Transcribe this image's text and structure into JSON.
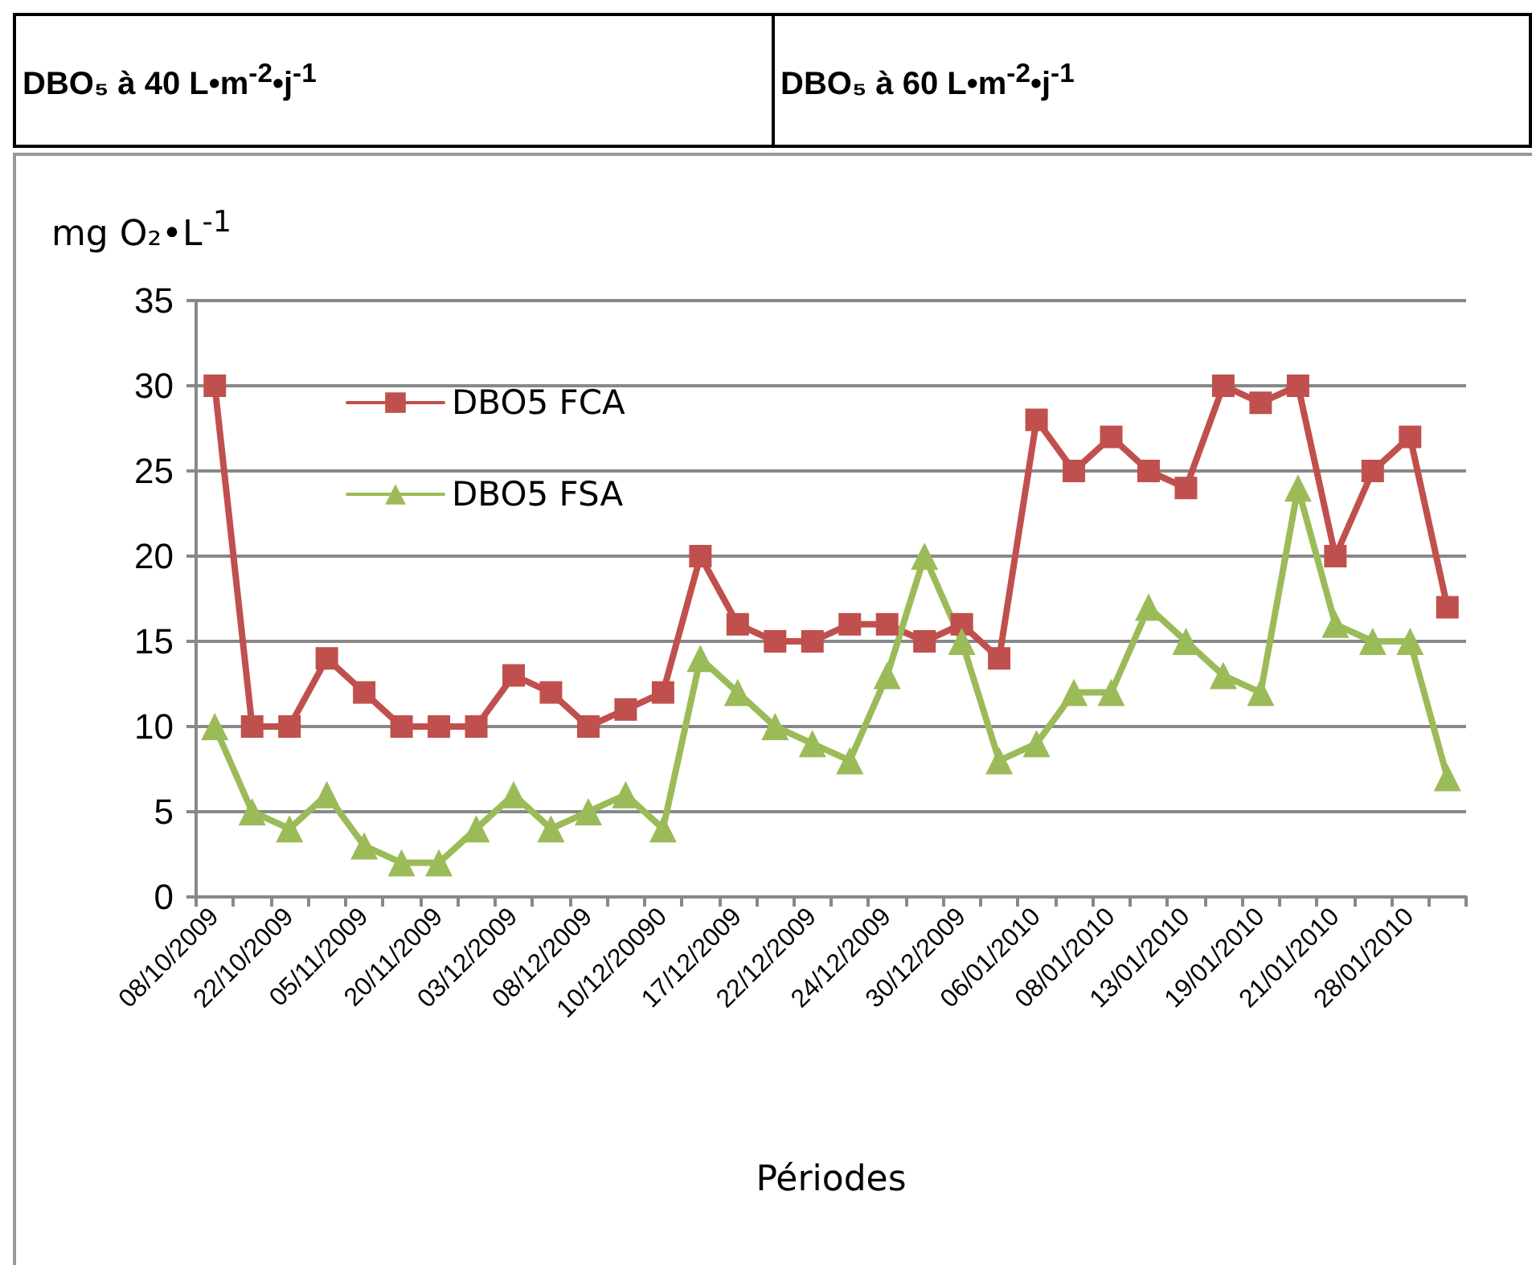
{
  "chart_data": {
    "type": "line",
    "annotations": [
      "DBO₅ à 40 L•m$^{-2}$•j$^{-1}$",
      "DBO₅ à 60 L•m$^{-2}$•j$^{-1}$"
    ],
    "ylabel": "mg O₂•L$^{-1}$",
    "xlabel": "Périodes",
    "categories": [
      "08/10/2009",
      null,
      "22/10/2009",
      null,
      "05/11/2009",
      null,
      "20/11/2009",
      null,
      "03/12/2009",
      null,
      "08/12/2009",
      null,
      "10/12/20090",
      null,
      "17/12/2009",
      null,
      "22/12/2009",
      null,
      "24/12/2009",
      null,
      "30/12/2009",
      null,
      "06/01/2010",
      null,
      "08/01/2010",
      null,
      "13/01/2010",
      null,
      "19/01/2010",
      null,
      "21/01/2010",
      null,
      "28/01/2010",
      null
    ],
    "series": [
      {
        "name": "DBO5 FCA",
        "color": "#c0504d",
        "marker": "square",
        "values": [
          30,
          10,
          10,
          14,
          12,
          10,
          10,
          10,
          13,
          12,
          10,
          11,
          12,
          20,
          16,
          15,
          15,
          16,
          16,
          15,
          16,
          14,
          28,
          25,
          27,
          25,
          24,
          30,
          29,
          30,
          20,
          25,
          27,
          17
        ]
      },
      {
        "name": "DBO5 FSA",
        "color": "#9bbb59",
        "marker": "triangle",
        "values": [
          10,
          5,
          4,
          6,
          3,
          2,
          2,
          4,
          6,
          4,
          5,
          6,
          4,
          14,
          12,
          10,
          9,
          8,
          13,
          20,
          15,
          8,
          9,
          12,
          12,
          17,
          15,
          13,
          12,
          24,
          16,
          15,
          15,
          7
        ]
      }
    ],
    "ylim": [
      0,
      35
    ],
    "yticks": [
      0,
      5,
      10,
      15,
      20,
      25,
      30,
      35
    ],
    "grid": "y",
    "legend": "top left",
    "line_style": "solid"
  }
}
